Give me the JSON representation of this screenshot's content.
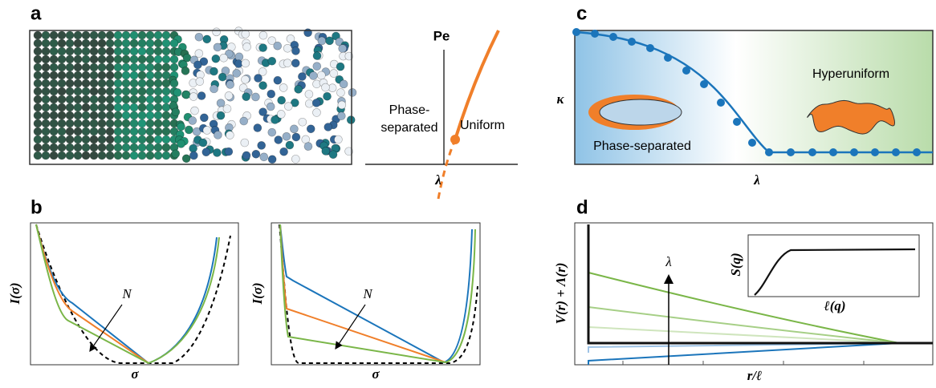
{
  "panel_a": {
    "label": "a",
    "y_label": "Pe",
    "left_region": [
      "Phase-",
      "separated"
    ],
    "right_region": "Uniform",
    "x_label": "λ"
  },
  "panel_b": {
    "label": "b",
    "left": {
      "y_label": "I(σ)",
      "x_label": "σ",
      "annotation": "N"
    },
    "right": {
      "y_label": "I(σ)",
      "x_label": "σ",
      "annotation": "N"
    }
  },
  "panel_c": {
    "label": "c",
    "y_label": "κ",
    "x_label": "λ",
    "left_region": "Phase-separated",
    "right_region": "Hyperuniform"
  },
  "panel_d": {
    "label": "d",
    "y_label": "V(r) + Λ(r)",
    "x_label": "r/ℓ",
    "arrow_label": "λ",
    "inset_y_label": "S(q)",
    "inset_x_label": "ℓ(q)"
  }
}
